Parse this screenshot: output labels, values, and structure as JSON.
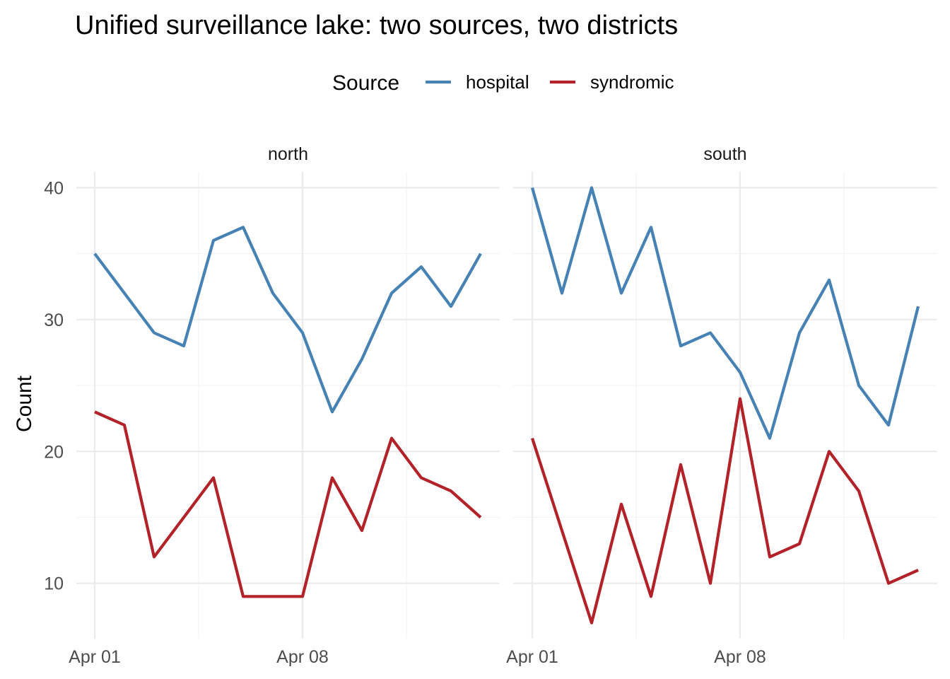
{
  "chart_data": {
    "type": "line",
    "title": "Unified surveillance lake: two sources, two districts",
    "legend": {
      "title": "Source",
      "position": "top",
      "entries": [
        {
          "name": "hospital",
          "color": "#4682b4"
        },
        {
          "name": "syndromic",
          "color": "#b22228"
        }
      ]
    },
    "xlabel": "",
    "ylabel": "Count",
    "x": [
      "Apr 01",
      "Apr 02",
      "Apr 03",
      "Apr 04",
      "Apr 05",
      "Apr 06",
      "Apr 07",
      "Apr 08",
      "Apr 09",
      "Apr 10",
      "Apr 11",
      "Apr 12",
      "Apr 13",
      "Apr 14"
    ],
    "x_tick_labels": [
      {
        "index": 0,
        "label": "Apr 01"
      },
      {
        "index": 7,
        "label": "Apr 08"
      }
    ],
    "ylim": [
      5.8,
      41.2
    ],
    "y_ticks": [
      10,
      20,
      30,
      40
    ],
    "grid": true,
    "panels": [
      {
        "name": "north",
        "series": [
          {
            "name": "hospital",
            "values": [
              35,
              32,
              29,
              28,
              36,
              37,
              32,
              29,
              23,
              27,
              32,
              34,
              31,
              35
            ]
          },
          {
            "name": "syndromic",
            "values": [
              23,
              22,
              12,
              15,
              18,
              9,
              9,
              9,
              18,
              14,
              21,
              18,
              17,
              15
            ]
          }
        ]
      },
      {
        "name": "south",
        "series": [
          {
            "name": "hospital",
            "values": [
              40,
              32,
              40,
              32,
              37,
              28,
              29,
              26,
              21,
              29,
              33,
              25,
              22,
              31
            ]
          },
          {
            "name": "syndromic",
            "values": [
              21,
              14,
              7,
              16,
              9,
              19,
              10,
              24,
              12,
              13,
              20,
              17,
              10,
              11
            ]
          }
        ]
      }
    ]
  }
}
